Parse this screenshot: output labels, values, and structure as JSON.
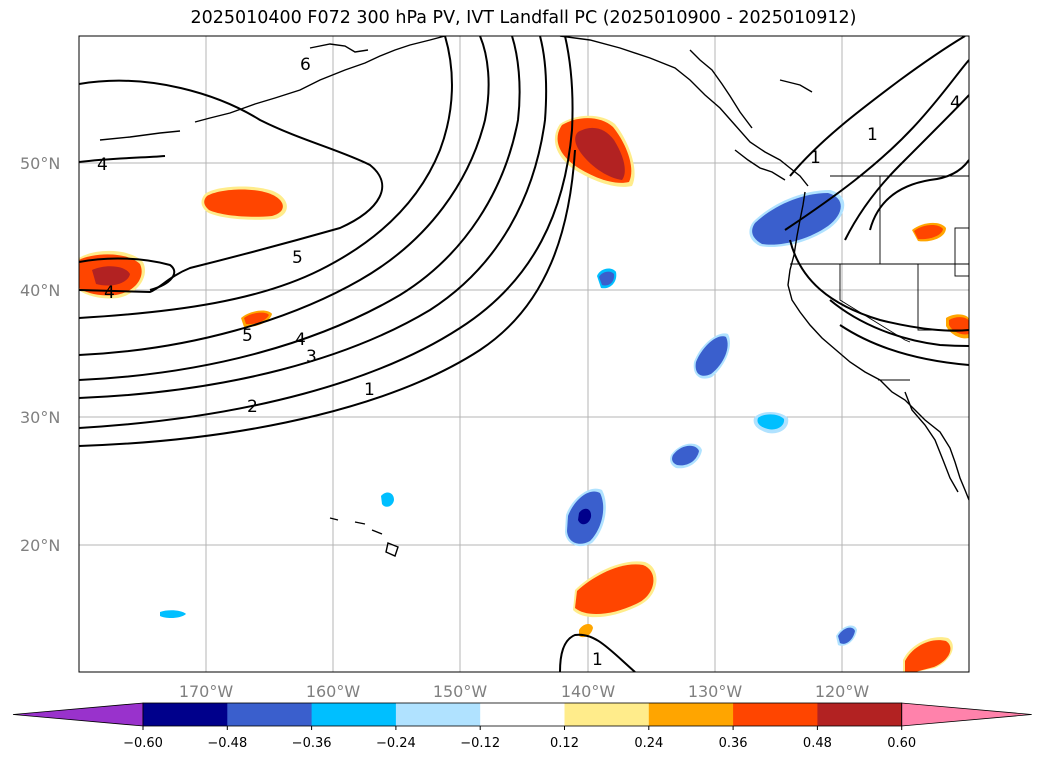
{
  "title": "2025010400 F072 300 hPa PV, IVT Landfall PC (2025010900 - 2025010912)",
  "map": {
    "lat_labels": [
      "50°N",
      "40°N",
      "30°N",
      "20°N"
    ],
    "lon_labels": [
      "170°W",
      "160°W",
      "150°W",
      "140°W",
      "130°W",
      "120°W"
    ],
    "gridlines": true
  },
  "contours": {
    "labels": [
      "6",
      "4",
      "4",
      "5",
      "5",
      "4",
      "3",
      "2",
      "1",
      "1",
      "1",
      "1",
      "4"
    ]
  },
  "colorbar": {
    "extend": "both",
    "ticks": [
      "−0.60",
      "−0.48",
      "−0.36",
      "−0.24",
      "−0.12",
      "0.12",
      "0.24",
      "0.36",
      "0.48",
      "0.60"
    ],
    "colors": [
      "#9932CC",
      "#00008B",
      "#3A5FCD",
      "#00BFFF",
      "#B0E2FF",
      "#FFFFFF",
      "#FFEC8B",
      "#FFA500",
      "#FF4500",
      "#B22222",
      "#FF82AB"
    ]
  }
}
